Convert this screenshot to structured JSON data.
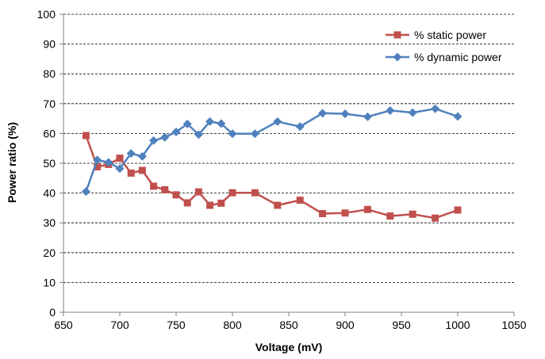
{
  "chart_data": {
    "type": "line",
    "title": "",
    "xlabel": "Voltage (mV)",
    "ylabel": "Power ratio (%)",
    "xlim": [
      650,
      1050
    ],
    "ylim": [
      0,
      100
    ],
    "xticks": [
      650,
      700,
      750,
      800,
      850,
      900,
      950,
      1000,
      1050
    ],
    "yticks": [
      0,
      10,
      20,
      30,
      40,
      50,
      60,
      70,
      80,
      90,
      100
    ],
    "grid": "horizontal-dashed",
    "legend_position": "top-right",
    "series": [
      {
        "name": "% static power",
        "color": "#c0504d",
        "marker": "square",
        "x": [
          670,
          680,
          690,
          700,
          710,
          720,
          730,
          740,
          750,
          760,
          770,
          780,
          790,
          800,
          820,
          840,
          860,
          880,
          900,
          920,
          940,
          960,
          980,
          1000
        ],
        "y": [
          59.3,
          48.8,
          49.6,
          51.7,
          46.7,
          47.6,
          42.3,
          41.1,
          39.4,
          36.7,
          40.4,
          35.9,
          36.6,
          40.1,
          40.1,
          35.9,
          37.6,
          33.1,
          33.3,
          34.5,
          32.3,
          32.9,
          31.6,
          34.3
        ]
      },
      {
        "name": "% dynamic power",
        "color": "#4f81bd",
        "marker": "diamond",
        "x": [
          670,
          680,
          690,
          700,
          710,
          720,
          730,
          740,
          750,
          760,
          770,
          780,
          790,
          800,
          820,
          840,
          860,
          880,
          900,
          920,
          940,
          960,
          980,
          1000
        ],
        "y": [
          40.5,
          51.1,
          50.3,
          48.2,
          53.3,
          52.3,
          57.6,
          58.7,
          60.5,
          63.2,
          59.6,
          64.0,
          63.3,
          59.9,
          59.9,
          64.0,
          62.3,
          66.8,
          66.6,
          65.6,
          67.7,
          67.0,
          68.3,
          65.7
        ]
      }
    ]
  }
}
